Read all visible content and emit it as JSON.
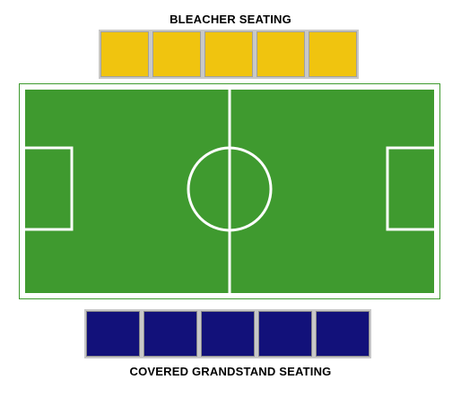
{
  "labels": {
    "top": "BLEACHER SEATING",
    "bottom": "COVERED GRANDSTAND SEATING"
  },
  "colors": {
    "bleacher_section": "#f0c40f",
    "grandstand_section": "#12117a",
    "pitch_grass": "#3f9a2f",
    "field_lines": "#ffffff",
    "frame_border": "#3e9a2e"
  },
  "sections": {
    "bleacher": [
      {
        "id": "bleacher-1"
      },
      {
        "id": "bleacher-2"
      },
      {
        "id": "bleacher-3"
      },
      {
        "id": "bleacher-4"
      },
      {
        "id": "bleacher-5"
      }
    ],
    "grandstand": [
      {
        "id": "grandstand-1"
      },
      {
        "id": "grandstand-2"
      },
      {
        "id": "grandstand-3"
      },
      {
        "id": "grandstand-4"
      },
      {
        "id": "grandstand-5"
      }
    ]
  }
}
